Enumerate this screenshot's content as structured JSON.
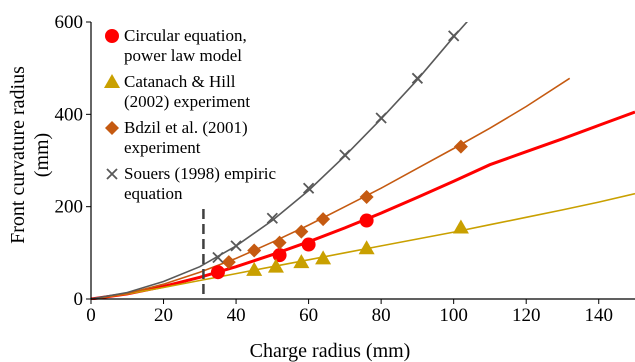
{
  "chart_data": {
    "type": "scatter",
    "xlabel": "Charge radius (mm)",
    "ylabel_lines": [
      "Front curvature radius",
      "(mm)"
    ],
    "xlim": [
      0,
      150
    ],
    "ylim": [
      0,
      600
    ],
    "xticks": [
      "0",
      "20",
      "40",
      "60",
      "80",
      "100",
      "120",
      "140"
    ],
    "yticks": [
      "0",
      "200",
      "400",
      "600"
    ],
    "grid": false,
    "legend_placement": "top-left",
    "vertical_marker_x": 31,
    "series": [
      {
        "name_lines": [
          "Circular equation,",
          "power law model"
        ],
        "marker": "circle",
        "color": "#ff0000",
        "points": [
          [
            35,
            58
          ],
          [
            52,
            95
          ],
          [
            60,
            118
          ],
          [
            76,
            170
          ]
        ],
        "curve": [
          [
            0,
            0
          ],
          [
            10,
            11
          ],
          [
            20,
            27
          ],
          [
            30,
            47
          ],
          [
            40,
            70
          ],
          [
            50,
            96
          ],
          [
            60,
            124
          ],
          [
            70,
            154
          ],
          [
            80,
            186
          ],
          [
            90,
            220
          ],
          [
            100,
            255
          ],
          [
            110,
            291
          ],
          [
            120,
            319
          ],
          [
            130,
            347
          ],
          [
            140,
            376
          ],
          [
            150,
            405
          ]
        ]
      },
      {
        "name_lines": [
          "Catanach & Hill",
          "(2002) experiment"
        ],
        "marker": "triangle",
        "color": "#c9a000",
        "points": [
          [
            45,
            63
          ],
          [
            51,
            70
          ],
          [
            58,
            80
          ],
          [
            64,
            88
          ],
          [
            76,
            110
          ],
          [
            102,
            155
          ]
        ],
        "curve": [
          [
            0,
            0
          ],
          [
            10,
            11
          ],
          [
            20,
            25
          ],
          [
            30,
            40
          ],
          [
            40,
            55
          ],
          [
            50,
            70
          ],
          [
            60,
            85
          ],
          [
            70,
            100
          ],
          [
            80,
            115
          ],
          [
            90,
            130
          ],
          [
            100,
            145
          ],
          [
            110,
            161
          ],
          [
            120,
            177
          ],
          [
            130,
            193
          ],
          [
            140,
            210
          ],
          [
            150,
            228
          ]
        ]
      },
      {
        "name_lines": [
          "Bdzil et al. (2001)",
          "experiment"
        ],
        "marker": "diamond",
        "color": "#c55a11",
        "points": [
          [
            38,
            80
          ],
          [
            45,
            105
          ],
          [
            52,
            122
          ],
          [
            58,
            146
          ],
          [
            64,
            173
          ],
          [
            76,
            221
          ],
          [
            102,
            330
          ]
        ],
        "curve": [
          [
            0,
            0
          ],
          [
            10,
            12
          ],
          [
            20,
            32
          ],
          [
            30,
            58
          ],
          [
            40,
            88
          ],
          [
            50,
            123
          ],
          [
            60,
            160
          ],
          [
            70,
            200
          ],
          [
            80,
            240
          ],
          [
            90,
            283
          ],
          [
            100,
            326
          ],
          [
            110,
            370
          ],
          [
            120,
            417
          ],
          [
            132,
            478
          ]
        ]
      },
      {
        "name_lines": [
          "Souers (1998) empiric",
          "equation"
        ],
        "marker": "x",
        "color": "#595959",
        "points": [
          [
            35,
            90
          ],
          [
            40,
            115
          ],
          [
            50,
            175
          ],
          [
            60,
            240
          ],
          [
            70,
            312
          ],
          [
            80,
            392
          ],
          [
            90,
            478
          ],
          [
            100,
            570
          ]
        ],
        "curve": [
          [
            0,
            0
          ],
          [
            10,
            14
          ],
          [
            20,
            38
          ],
          [
            30,
            70
          ],
          [
            40,
            115
          ],
          [
            50,
            170
          ],
          [
            60,
            235
          ],
          [
            70,
            310
          ],
          [
            80,
            390
          ],
          [
            90,
            475
          ],
          [
            100,
            568
          ],
          [
            105,
            612
          ]
        ]
      }
    ]
  }
}
